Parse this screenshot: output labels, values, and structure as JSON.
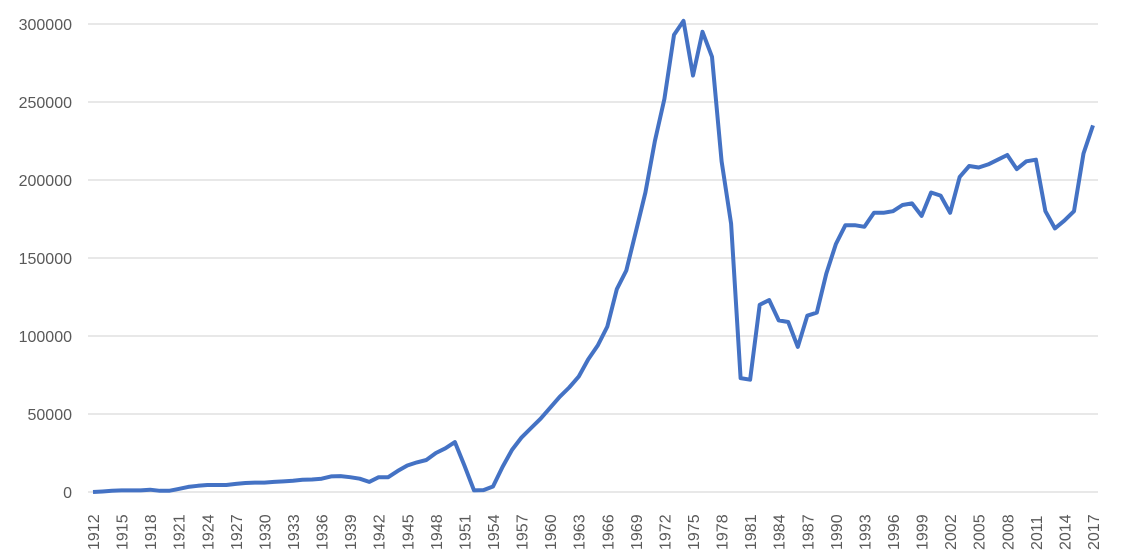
{
  "chart_data": {
    "type": "line",
    "title": "",
    "xlabel": "",
    "ylabel": "",
    "ylim": [
      0,
      300000
    ],
    "yticks": [
      0,
      50000,
      100000,
      150000,
      200000,
      250000,
      300000
    ],
    "ytick_labels": [
      "0",
      "50000",
      "100000",
      "150000",
      "200000",
      "250000",
      "300000"
    ],
    "xtick_labels": [
      "1912",
      "1915",
      "1918",
      "1921",
      "1924",
      "1927",
      "1930",
      "1933",
      "1936",
      "1939",
      "1942",
      "1945",
      "1948",
      "1951",
      "1954",
      "1957",
      "1960",
      "1963",
      "1966",
      "1969",
      "1972",
      "1975",
      "1978",
      "1981",
      "1984",
      "1987",
      "1990",
      "1993",
      "1996",
      "1999",
      "2002",
      "2005",
      "2008",
      "2011",
      "2014",
      "2017"
    ],
    "grid": "horizontal",
    "legend": "none",
    "line_color": "#4472C4",
    "x_start": 1912,
    "x_end": 2017,
    "series": [
      {
        "values": [
          0,
          300,
          800,
          1000,
          1000,
          1000,
          1500,
          800,
          800,
          2000,
          3300,
          4000,
          4500,
          4500,
          4500,
          5200,
          5800,
          6000,
          6000,
          6500,
          6800,
          7200,
          7800,
          8000,
          8500,
          10000,
          10200,
          9500,
          8500,
          6500,
          9500,
          9500,
          13500,
          17000,
          19000,
          20500,
          25000,
          28000,
          32000,
          17000,
          1000,
          1200,
          3500,
          16000,
          27000,
          35000,
          41000,
          47000,
          54000,
          61000,
          67000,
          74000,
          85000,
          94000,
          106000,
          130000,
          142000,
          167000,
          192000,
          225000,
          252000,
          293000,
          302000,
          267000,
          295000,
          279000,
          212000,
          172000,
          73000,
          72000,
          120000,
          123000,
          110000,
          109000,
          93000,
          113000,
          115000,
          140000,
          159000,
          171000,
          171000,
          170000,
          179000,
          179000,
          180000,
          184000,
          185000,
          177000,
          192000,
          190000,
          179000,
          202000,
          209000,
          208000,
          210000,
          213000,
          216000,
          207000,
          212000,
          213000,
          180000,
          169000,
          174000,
          180000,
          217000,
          235000
        ]
      }
    ]
  }
}
